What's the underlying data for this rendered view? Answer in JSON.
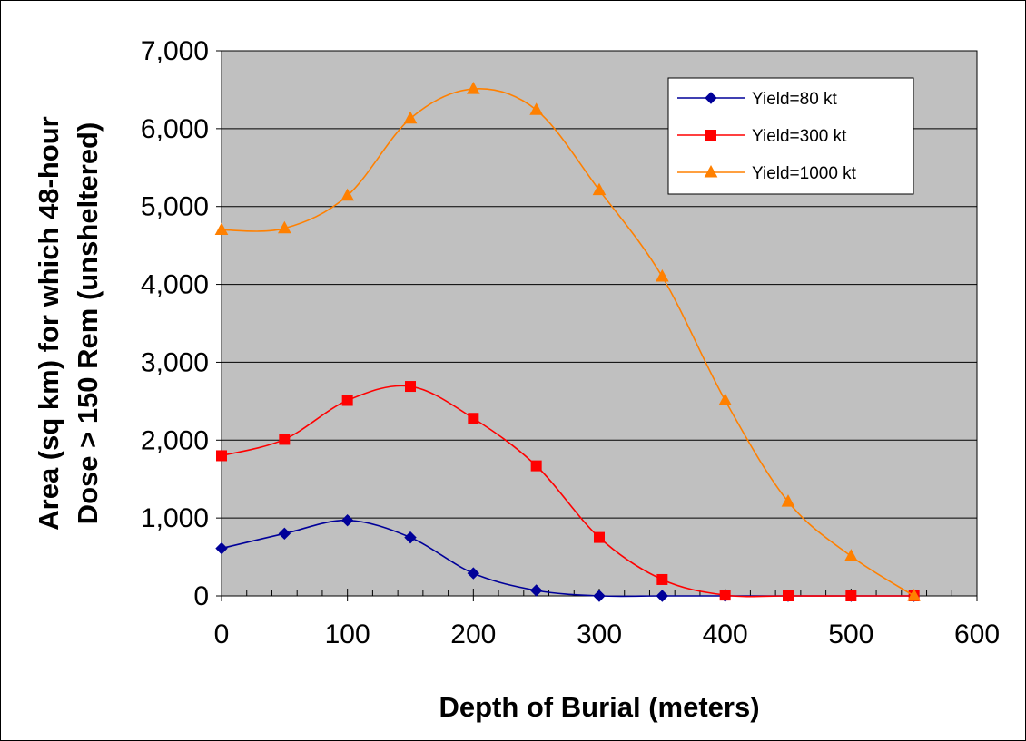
{
  "chart_data": {
    "type": "line",
    "title": "",
    "xlabel": "Depth of Burial (meters)",
    "ylabel_line1": "Area (sq km) for which 48-hour",
    "ylabel_line2": "Dose > 150 Rem (unsheltered)",
    "xlim": [
      0,
      600
    ],
    "ylim": [
      0,
      7000
    ],
    "x_ticks": [
      0,
      100,
      200,
      300,
      400,
      500,
      600
    ],
    "x_tick_labels": [
      "0",
      "100",
      "200",
      "300",
      "400",
      "500",
      "600"
    ],
    "y_ticks": [
      0,
      1000,
      2000,
      3000,
      4000,
      5000,
      6000,
      7000
    ],
    "y_tick_labels": [
      "0",
      "1,000",
      "2,000",
      "3,000",
      "4,000",
      "5,000",
      "6,000",
      "7,000"
    ],
    "grid": "horizontal",
    "plot_background": "#C0C0C0",
    "legend_position": "top-right",
    "x": [
      0,
      50,
      100,
      150,
      200,
      250,
      300,
      350,
      400,
      450,
      500,
      550
    ],
    "series": [
      {
        "name": "Yield=80 kt",
        "color": "#000099",
        "marker": "diamond",
        "values": [
          610,
          800,
          970,
          750,
          290,
          70,
          0,
          0,
          0,
          0,
          0,
          0
        ]
      },
      {
        "name": "Yield=300 kt",
        "color": "#FF0000",
        "marker": "square",
        "values": [
          1800,
          2010,
          2510,
          2690,
          2280,
          1670,
          750,
          210,
          10,
          0,
          0,
          0
        ]
      },
      {
        "name": "Yield=1000 kt",
        "color": "#FF8000",
        "marker": "triangle",
        "values": [
          4700,
          4720,
          5140,
          6130,
          6510,
          6240,
          5210,
          4100,
          2510,
          1210,
          510,
          0
        ]
      }
    ]
  }
}
